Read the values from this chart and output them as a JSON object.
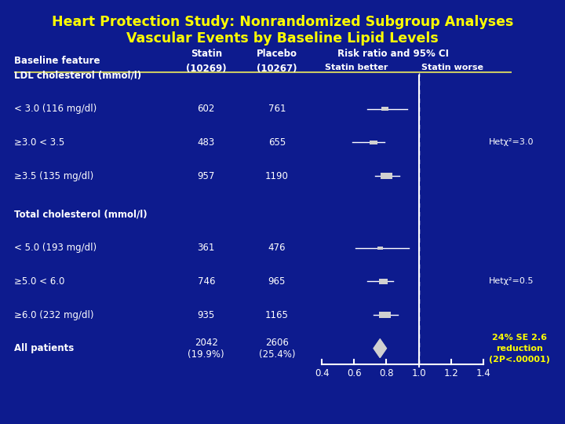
{
  "title_line1": "Heart Protection Study: Nonrandomized Subgroup Analyses",
  "title_line2": "Vascular Events by Baseline Lipid Levels",
  "bg_color": "#0d1b8e",
  "title_color": "#ffff00",
  "text_color": "#ffffff",
  "header_color": "#ffffff",
  "rows": [
    {
      "label": "LDL cholesterol (mmol/l)",
      "statin": "",
      "placebo": "",
      "is_header": true,
      "rr": null,
      "ci_lo": null,
      "ci_hi": null,
      "bold": false,
      "size": 0
    },
    {
      "label": "< 3.0 (116 mg/dl)",
      "statin": "602",
      "placebo": "761",
      "is_header": false,
      "rr": 0.79,
      "ci_lo": 0.68,
      "ci_hi": 0.93,
      "bold": false,
      "size": 1.0
    },
    {
      "≥label": "≥3.0 < 3.5",
      "label": "≥3.0 < 3.5",
      "statin": "483",
      "placebo": "655",
      "is_header": false,
      "rr": 0.72,
      "ci_lo": 0.59,
      "ci_hi": 0.79,
      "bold": false,
      "size": 1.0
    },
    {
      "label": "≥3.5 (135 mg/dl)",
      "statin": "957",
      "placebo": "1190",
      "is_header": false,
      "rr": 0.8,
      "ci_lo": 0.73,
      "ci_hi": 0.88,
      "bold": false,
      "size": 1.6
    },
    {
      "label": "Total cholesterol (mmol/l)",
      "statin": "",
      "placebo": "",
      "is_header": true,
      "rr": null,
      "ci_lo": null,
      "ci_hi": null,
      "bold": false,
      "size": 0
    },
    {
      "label": "< 5.0 (193 mg/dl)",
      "statin": "361",
      "placebo": "476",
      "is_header": false,
      "rr": 0.76,
      "ci_lo": 0.61,
      "ci_hi": 0.94,
      "bold": false,
      "size": 0.7
    },
    {
      "≥label": "≥5.0 < 6.0",
      "label": "≥5.0 < 6.0",
      "statin": "746",
      "placebo": "965",
      "is_header": false,
      "rr": 0.78,
      "ci_lo": 0.68,
      "ci_hi": 0.84,
      "bold": false,
      "size": 1.2
    },
    {
      "label": "≥6.0 (232 mg/dl)",
      "statin": "935",
      "placebo": "1165",
      "is_header": false,
      "rr": 0.79,
      "ci_lo": 0.72,
      "ci_hi": 0.87,
      "bold": false,
      "size": 1.6
    },
    {
      "label": "All patients",
      "statin": "2042\n(19.9%)",
      "placebo": "2606\n(25.4%)",
      "is_header": false,
      "rr": 0.76,
      "ci_lo": 0.72,
      "ci_hi": 0.8,
      "bold": true,
      "size": 2.5,
      "diamond": true
    }
  ],
  "x_ticks": [
    0.4,
    0.6,
    0.8,
    1.0,
    1.2,
    1.4
  ],
  "marker_color": "#d0d0d0",
  "line_color": "#ffffff",
  "separator_color": "#c8c864",
  "annotation_color": "#ffff00",
  "annotation_text": "24% SE 2.6\nreduction\n(2P<.00001)",
  "het_texts": [
    "Hetχ²=3.0",
    "Hetχ²=0.5"
  ],
  "het_row_indices": [
    2,
    6
  ]
}
